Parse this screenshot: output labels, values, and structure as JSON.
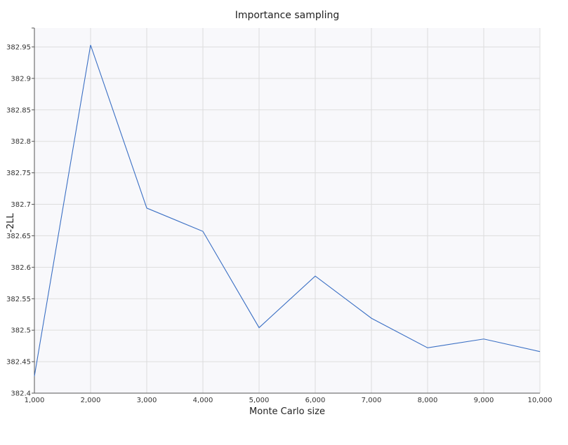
{
  "chart_data": {
    "type": "line",
    "title": "Importance sampling",
    "xlabel": "Monte Carlo size",
    "ylabel": "-2LL",
    "x": [
      1000,
      2000,
      3000,
      4000,
      5000,
      6000,
      7000,
      8000,
      9000,
      10000
    ],
    "series": [
      {
        "values": [
          382.427,
          382.953,
          382.694,
          382.657,
          382.504,
          382.586,
          382.519,
          382.472,
          382.486,
          382.466
        ]
      }
    ],
    "xlim": [
      1000,
      10000
    ],
    "ylim": [
      382.4,
      382.98
    ],
    "x_ticks": [
      1000,
      2000,
      3000,
      4000,
      5000,
      6000,
      7000,
      8000,
      9000,
      10000
    ],
    "x_tick_labels": [
      "1,000",
      "2,000",
      "3,000",
      "4,000",
      "5,000",
      "6,000",
      "7,000",
      "8,000",
      "9,000",
      "10,000"
    ],
    "y_ticks": [
      382.4,
      382.45,
      382.5,
      382.55,
      382.6,
      382.65,
      382.7,
      382.75,
      382.8,
      382.85,
      382.9,
      382.95
    ],
    "y_tick_labels": [
      "382.4",
      "382.45",
      "382.5",
      "382.55",
      "382.6",
      "382.65",
      "382.7",
      "382.75",
      "382.8",
      "382.85",
      "382.9",
      "382.95"
    ],
    "grid": true,
    "line_color": "#3a6fc4",
    "plot_background": "#f8f8fb",
    "grid_color": "#dddddd"
  }
}
